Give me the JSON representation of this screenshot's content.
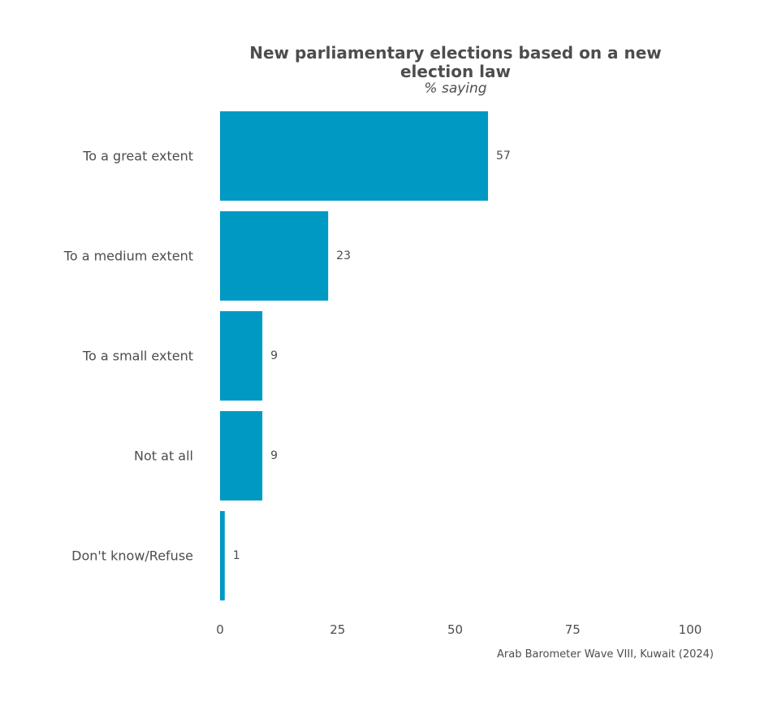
{
  "chart_data": {
    "type": "bar",
    "orientation": "horizontal",
    "title": "New parliamentary elections based on a new election law",
    "title_lines": [
      "New parliamentary elections based on a new",
      "election law"
    ],
    "subtitle": "% saying",
    "categories": [
      "To a great extent",
      "To a medium extent",
      "To a small extent",
      "Not at all",
      "Don't know/Refuse"
    ],
    "values": [
      57,
      23,
      9,
      9,
      1
    ],
    "value_labels": [
      "57",
      "23",
      "9",
      "9",
      "1"
    ],
    "xlim": [
      0,
      100
    ],
    "x_ticks": [
      0,
      25,
      50,
      75,
      100
    ],
    "x_tick_labels": [
      "0",
      "25",
      "50",
      "75",
      "100"
    ],
    "xlabel": "",
    "ylabel": "",
    "grid": false,
    "legend": "none",
    "caption": "Arab Barometer Wave VIII, Kuwait (2024)",
    "colors": {
      "bar": "#0099c3",
      "text": "#4d4d4d",
      "background": "#ffffff"
    }
  }
}
